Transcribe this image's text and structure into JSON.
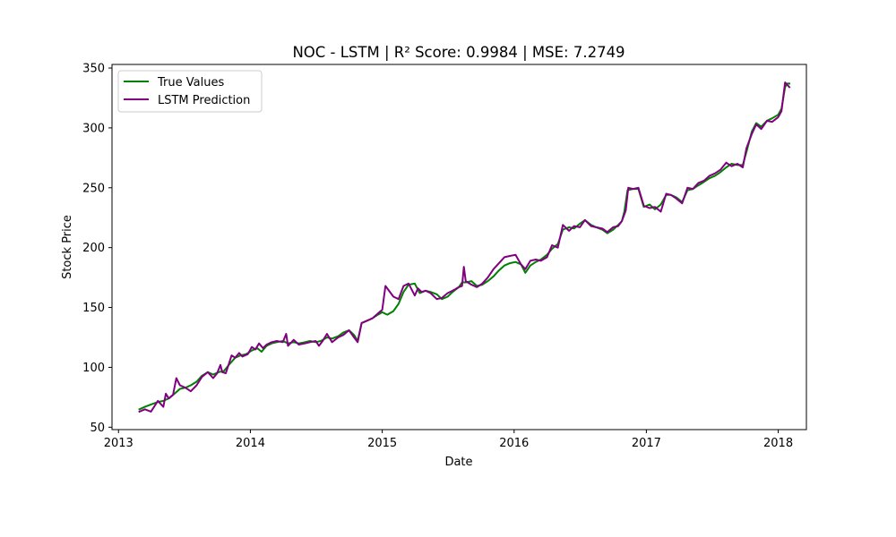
{
  "chart_data": {
    "type": "line",
    "title": "NOC - LSTM | R² Score: 0.9984 | MSE: 7.2749",
    "xlabel": "Date",
    "ylabel": "Stock Price",
    "xlim": [
      "2012-12-14",
      "2018-03-20"
    ],
    "ylim": [
      48,
      353
    ],
    "x_ticks": [
      "2013",
      "2014",
      "2015",
      "2016",
      "2017",
      "2018"
    ],
    "y_ticks": [
      50,
      100,
      150,
      200,
      250,
      300,
      350
    ],
    "grid": false,
    "legend_position": "upper-left",
    "series": [
      {
        "name": "True Values",
        "color": "#008000",
        "points": [
          [
            "2013-02-28",
            65
          ],
          [
            "2013-03-15",
            67
          ],
          [
            "2013-04-01",
            69
          ],
          [
            "2013-04-20",
            71
          ],
          [
            "2013-05-05",
            72
          ],
          [
            "2013-05-20",
            74
          ],
          [
            "2013-06-05",
            78
          ],
          [
            "2013-06-20",
            82
          ],
          [
            "2013-07-05",
            83
          ],
          [
            "2013-07-20",
            85
          ],
          [
            "2013-08-05",
            88
          ],
          [
            "2013-08-20",
            93
          ],
          [
            "2013-09-05",
            96
          ],
          [
            "2013-09-20",
            94
          ],
          [
            "2013-10-05",
            96
          ],
          [
            "2013-10-20",
            97
          ],
          [
            "2013-11-05",
            103
          ],
          [
            "2013-11-20",
            108
          ],
          [
            "2013-12-05",
            110
          ],
          [
            "2013-12-20",
            111
          ],
          [
            "2014-01-05",
            114
          ],
          [
            "2014-01-20",
            116
          ],
          [
            "2014-02-01",
            113
          ],
          [
            "2014-02-15",
            118
          ],
          [
            "2014-03-01",
            120
          ],
          [
            "2014-03-15",
            121
          ],
          [
            "2014-04-01",
            122
          ],
          [
            "2014-04-15",
            120
          ],
          [
            "2014-05-01",
            121
          ],
          [
            "2014-05-15",
            120
          ],
          [
            "2014-06-01",
            121
          ],
          [
            "2014-06-15",
            122
          ],
          [
            "2014-07-01",
            121
          ],
          [
            "2014-07-15",
            122
          ],
          [
            "2014-08-01",
            125
          ],
          [
            "2014-08-15",
            124
          ],
          [
            "2014-09-01",
            126
          ],
          [
            "2014-09-15",
            129
          ],
          [
            "2014-10-01",
            131
          ],
          [
            "2014-10-15",
            127
          ],
          [
            "2014-10-25",
            122
          ],
          [
            "2014-11-05",
            137
          ],
          [
            "2014-11-20",
            139
          ],
          [
            "2014-12-05",
            141
          ],
          [
            "2014-12-20",
            144
          ],
          [
            "2015-01-01",
            146
          ],
          [
            "2015-01-15",
            144
          ],
          [
            "2015-02-01",
            147
          ],
          [
            "2015-02-15",
            153
          ],
          [
            "2015-03-01",
            163
          ],
          [
            "2015-03-15",
            169
          ],
          [
            "2015-04-01",
            170
          ],
          [
            "2015-04-15",
            162
          ],
          [
            "2015-05-01",
            164
          ],
          [
            "2015-05-15",
            163
          ],
          [
            "2015-06-01",
            161
          ],
          [
            "2015-06-15",
            157
          ],
          [
            "2015-07-01",
            159
          ],
          [
            "2015-07-15",
            163
          ],
          [
            "2015-08-01",
            167
          ],
          [
            "2015-08-10",
            171
          ],
          [
            "2015-08-20",
            171
          ],
          [
            "2015-09-05",
            172
          ],
          [
            "2015-09-20",
            168
          ],
          [
            "2015-10-05",
            169
          ],
          [
            "2015-10-20",
            172
          ],
          [
            "2015-11-05",
            176
          ],
          [
            "2015-11-20",
            181
          ],
          [
            "2015-12-05",
            185
          ],
          [
            "2015-12-20",
            187
          ],
          [
            "2016-01-05",
            188
          ],
          [
            "2016-01-20",
            186
          ],
          [
            "2016-02-01",
            179
          ],
          [
            "2016-02-15",
            185
          ],
          [
            "2016-03-01",
            188
          ],
          [
            "2016-03-15",
            190
          ],
          [
            "2016-04-01",
            194
          ],
          [
            "2016-04-15",
            199
          ],
          [
            "2016-05-01",
            203
          ],
          [
            "2016-05-15",
            215
          ],
          [
            "2016-06-01",
            217
          ],
          [
            "2016-06-15",
            216
          ],
          [
            "2016-07-01",
            220
          ],
          [
            "2016-07-15",
            223
          ],
          [
            "2016-08-01",
            219
          ],
          [
            "2016-08-15",
            217
          ],
          [
            "2016-09-01",
            215
          ],
          [
            "2016-09-15",
            212
          ],
          [
            "2016-10-01",
            215
          ],
          [
            "2016-10-15",
            219
          ],
          [
            "2016-10-25",
            222
          ],
          [
            "2016-11-01",
            230
          ],
          [
            "2016-11-10",
            248
          ],
          [
            "2016-11-25",
            249
          ],
          [
            "2016-12-10",
            249
          ],
          [
            "2016-12-25",
            234
          ],
          [
            "2017-01-10",
            236
          ],
          [
            "2017-01-25",
            232
          ],
          [
            "2017-02-10",
            236
          ],
          [
            "2017-02-25",
            244
          ],
          [
            "2017-03-10",
            244
          ],
          [
            "2017-03-25",
            242
          ],
          [
            "2017-04-10",
            238
          ],
          [
            "2017-04-25",
            248
          ],
          [
            "2017-05-10",
            249
          ],
          [
            "2017-05-25",
            252
          ],
          [
            "2017-06-10",
            255
          ],
          [
            "2017-06-25",
            258
          ],
          [
            "2017-07-10",
            260
          ],
          [
            "2017-07-25",
            263
          ],
          [
            "2017-08-10",
            267
          ],
          [
            "2017-08-25",
            270
          ],
          [
            "2017-09-10",
            269
          ],
          [
            "2017-09-25",
            269
          ],
          [
            "2017-10-05",
            280
          ],
          [
            "2017-10-20",
            297
          ],
          [
            "2017-11-01",
            304
          ],
          [
            "2017-11-15",
            301
          ],
          [
            "2017-12-01",
            306
          ],
          [
            "2017-12-15",
            308
          ],
          [
            "2018-01-01",
            311
          ],
          [
            "2018-01-10",
            316
          ],
          [
            "2018-01-20",
            334
          ],
          [
            "2018-01-26",
            337
          ],
          [
            "2018-02-01",
            337
          ]
        ]
      },
      {
        "name": "LSTM Prediction",
        "color": "#800080",
        "points": [
          [
            "2013-02-28",
            63
          ],
          [
            "2013-03-15",
            65
          ],
          [
            "2013-04-01",
            63
          ],
          [
            "2013-04-20",
            72
          ],
          [
            "2013-05-05",
            67
          ],
          [
            "2013-05-12",
            78
          ],
          [
            "2013-05-20",
            74
          ],
          [
            "2013-06-01",
            77
          ],
          [
            "2013-06-10",
            91
          ],
          [
            "2013-06-20",
            85
          ],
          [
            "2013-07-05",
            83
          ],
          [
            "2013-07-20",
            80
          ],
          [
            "2013-08-05",
            85
          ],
          [
            "2013-08-20",
            92
          ],
          [
            "2013-09-05",
            96
          ],
          [
            "2013-09-20",
            91
          ],
          [
            "2013-10-01",
            95
          ],
          [
            "2013-10-10",
            102
          ],
          [
            "2013-10-15",
            96
          ],
          [
            "2013-10-25",
            95
          ],
          [
            "2013-11-10",
            110
          ],
          [
            "2013-11-20",
            108
          ],
          [
            "2013-12-01",
            112
          ],
          [
            "2013-12-10",
            109
          ],
          [
            "2013-12-25",
            111
          ],
          [
            "2014-01-05",
            117
          ],
          [
            "2014-01-15",
            115
          ],
          [
            "2014-01-25",
            120
          ],
          [
            "2014-02-05",
            116
          ],
          [
            "2014-02-15",
            119
          ],
          [
            "2014-03-01",
            121
          ],
          [
            "2014-03-15",
            122
          ],
          [
            "2014-04-01",
            121
          ],
          [
            "2014-04-10",
            128
          ],
          [
            "2014-04-15",
            118
          ],
          [
            "2014-05-01",
            123
          ],
          [
            "2014-05-15",
            119
          ],
          [
            "2014-06-01",
            120
          ],
          [
            "2014-06-15",
            121
          ],
          [
            "2014-07-01",
            122
          ],
          [
            "2014-07-10",
            118
          ],
          [
            "2014-07-20",
            122
          ],
          [
            "2014-08-01",
            128
          ],
          [
            "2014-08-15",
            121
          ],
          [
            "2014-09-01",
            125
          ],
          [
            "2014-09-15",
            127
          ],
          [
            "2014-10-01",
            131
          ],
          [
            "2014-10-15",
            125
          ],
          [
            "2014-10-25",
            121
          ],
          [
            "2014-11-05",
            137
          ],
          [
            "2014-11-20",
            139
          ],
          [
            "2014-12-05",
            141
          ],
          [
            "2014-12-20",
            145
          ],
          [
            "2015-01-01",
            148
          ],
          [
            "2015-01-10",
            168
          ],
          [
            "2015-02-01",
            159
          ],
          [
            "2015-02-15",
            157
          ],
          [
            "2015-03-01",
            168
          ],
          [
            "2015-03-15",
            170
          ],
          [
            "2015-04-01",
            160
          ],
          [
            "2015-04-10",
            166
          ],
          [
            "2015-04-20",
            163
          ],
          [
            "2015-05-01",
            164
          ],
          [
            "2015-05-15",
            162
          ],
          [
            "2015-06-01",
            157
          ],
          [
            "2015-06-15",
            158
          ],
          [
            "2015-07-01",
            162
          ],
          [
            "2015-07-15",
            164
          ],
          [
            "2015-08-01",
            167
          ],
          [
            "2015-08-10",
            168
          ],
          [
            "2015-08-15",
            184
          ],
          [
            "2015-08-20",
            172
          ],
          [
            "2015-09-05",
            169
          ],
          [
            "2015-09-20",
            167
          ],
          [
            "2015-10-05",
            170
          ],
          [
            "2015-10-20",
            175
          ],
          [
            "2015-11-05",
            182
          ],
          [
            "2015-11-20",
            187
          ],
          [
            "2015-12-05",
            192
          ],
          [
            "2015-12-20",
            193
          ],
          [
            "2016-01-05",
            194
          ],
          [
            "2016-01-20",
            186
          ],
          [
            "2016-02-01",
            182
          ],
          [
            "2016-02-15",
            189
          ],
          [
            "2016-03-01",
            190
          ],
          [
            "2016-03-15",
            189
          ],
          [
            "2016-04-01",
            192
          ],
          [
            "2016-04-15",
            202
          ],
          [
            "2016-05-01",
            200
          ],
          [
            "2016-05-15",
            219
          ],
          [
            "2016-06-01",
            214
          ],
          [
            "2016-06-15",
            218
          ],
          [
            "2016-07-01",
            217
          ],
          [
            "2016-07-15",
            223
          ],
          [
            "2016-08-01",
            218
          ],
          [
            "2016-08-15",
            217
          ],
          [
            "2016-09-01",
            216
          ],
          [
            "2016-09-15",
            213
          ],
          [
            "2016-10-01",
            217
          ],
          [
            "2016-10-15",
            218
          ],
          [
            "2016-10-25",
            222
          ],
          [
            "2016-11-05",
            231
          ],
          [
            "2016-11-12",
            250
          ],
          [
            "2016-11-25",
            249
          ],
          [
            "2016-12-10",
            250
          ],
          [
            "2016-12-25",
            235
          ],
          [
            "2017-01-10",
            233
          ],
          [
            "2017-01-25",
            234
          ],
          [
            "2017-02-10",
            230
          ],
          [
            "2017-02-25",
            245
          ],
          [
            "2017-03-10",
            244
          ],
          [
            "2017-03-25",
            241
          ],
          [
            "2017-04-10",
            237
          ],
          [
            "2017-04-25",
            250
          ],
          [
            "2017-05-10",
            249
          ],
          [
            "2017-05-25",
            254
          ],
          [
            "2017-06-10",
            256
          ],
          [
            "2017-06-25",
            260
          ],
          [
            "2017-07-10",
            262
          ],
          [
            "2017-07-25",
            265
          ],
          [
            "2017-08-10",
            271
          ],
          [
            "2017-08-25",
            268
          ],
          [
            "2017-09-10",
            270
          ],
          [
            "2017-09-25",
            267
          ],
          [
            "2017-10-05",
            283
          ],
          [
            "2017-10-20",
            295
          ],
          [
            "2017-11-01",
            303
          ],
          [
            "2017-11-15",
            299
          ],
          [
            "2017-12-01",
            306
          ],
          [
            "2017-12-15",
            305
          ],
          [
            "2018-01-01",
            309
          ],
          [
            "2018-01-10",
            314
          ],
          [
            "2018-01-20",
            338
          ],
          [
            "2018-01-26",
            336
          ],
          [
            "2018-02-01",
            334
          ]
        ]
      }
    ]
  }
}
